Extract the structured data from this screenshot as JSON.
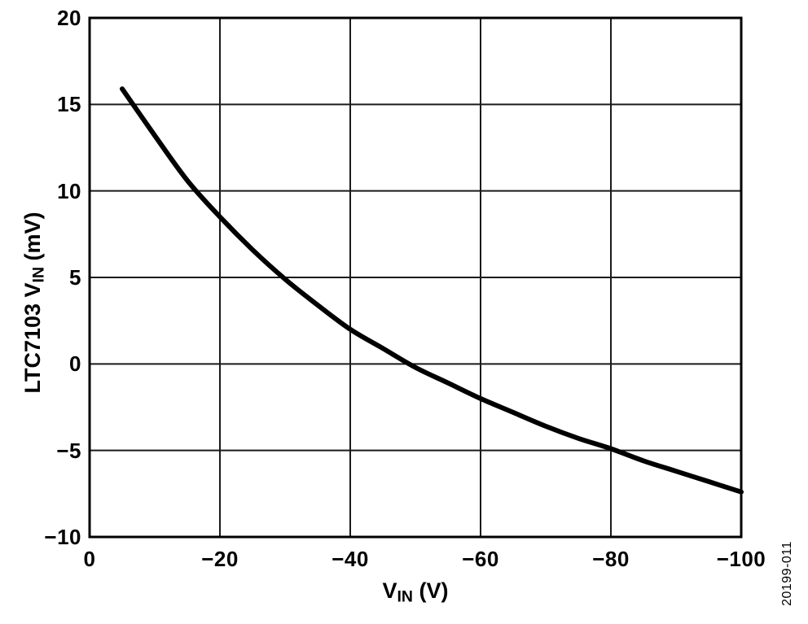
{
  "figure_number": "20199-011",
  "colors": {
    "background": "#ffffff",
    "frame": "#000000",
    "grid": "#1a1a1a",
    "curve": "#000000",
    "text": "#000000"
  },
  "chart_data": {
    "type": "line",
    "title": "",
    "xlabel": {
      "prefix": "V",
      "sub": "IN",
      "suffix": " (V)"
    },
    "ylabel": {
      "prefix": "LTC7103 V",
      "sub": "IN",
      "suffix": " (mV)"
    },
    "xlim": [
      0,
      -100
    ],
    "ylim": [
      -10,
      20
    ],
    "grid": true,
    "legend": null,
    "x_ticks": [
      {
        "v": 0,
        "label": "0"
      },
      {
        "v": -20,
        "label": "−20"
      },
      {
        "v": -40,
        "label": "−40"
      },
      {
        "v": -60,
        "label": "−60"
      },
      {
        "v": -80,
        "label": "−80"
      },
      {
        "v": -100,
        "label": "−100"
      }
    ],
    "y_ticks": [
      {
        "v": 20,
        "label": "20"
      },
      {
        "v": 15,
        "label": "15"
      },
      {
        "v": 10,
        "label": "10"
      },
      {
        "v": 5,
        "label": "5"
      },
      {
        "v": 0,
        "label": "0"
      },
      {
        "v": -5,
        "label": "−5"
      },
      {
        "v": -10,
        "label": "−10"
      }
    ],
    "series": [
      {
        "x": [
          -5,
          -10,
          -15,
          -20,
          -25,
          -30,
          -35,
          -40,
          -45,
          -50,
          -55,
          -60,
          -65,
          -70,
          -75,
          -80,
          -85,
          -90,
          -95,
          -100
        ],
        "y": [
          15.9,
          13.2,
          10.6,
          8.5,
          6.6,
          4.9,
          3.4,
          2.0,
          0.9,
          -0.2,
          -1.1,
          -2.0,
          -2.8,
          -3.6,
          -4.3,
          -4.9,
          -5.6,
          -6.2,
          -6.8,
          -7.4
        ]
      }
    ]
  }
}
